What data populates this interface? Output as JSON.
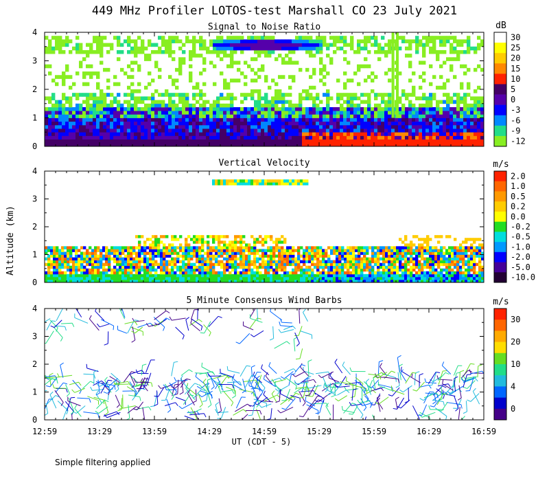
{
  "title": "449 MHz Profiler LOTOS-test Marshall CO 23 July 2021",
  "ylabel": "Altitude (km)",
  "xlabel": "UT  (CDT - 5)",
  "footnote": "Simple filtering applied",
  "x_ticks": [
    "12:59",
    "13:29",
    "13:59",
    "14:29",
    "14:59",
    "15:29",
    "15:59",
    "16:29",
    "16:59"
  ],
  "y_ticks": [
    "0",
    "1",
    "2",
    "3",
    "4"
  ],
  "chart_data": [
    {
      "type": "heatmap",
      "title": "Signal to Noise Ratio",
      "unit": "dB",
      "x_range": [
        "12:59",
        "16:59"
      ],
      "ylim": [
        0,
        4
      ],
      "colorbar": {
        "labels": [
          "30",
          "25",
          "20",
          "15",
          "10",
          "5",
          "0",
          "-3",
          "-6",
          "-9",
          "-12"
        ],
        "colors": [
          "#ffffff",
          "#ffff00",
          "#ffcc00",
          "#ff8800",
          "#ff2200",
          "#440066",
          "#5500aa",
          "#0000ff",
          "#0088ff",
          "#22dd88",
          "#88ee22"
        ]
      }
    },
    {
      "type": "heatmap",
      "title": "Vertical Velocity",
      "unit": "m/s",
      "x_range": [
        "12:59",
        "16:59"
      ],
      "ylim": [
        0,
        4
      ],
      "colorbar": {
        "labels": [
          "2.0",
          "1.0",
          "0.5",
          "0.2",
          "0.0",
          "-0.2",
          "-0.5",
          "-1.0",
          "-2.0",
          "-5.0",
          "-10.0"
        ],
        "colors": [
          "#ff2200",
          "#ff6600",
          "#ff9900",
          "#ffcc00",
          "#ffff00",
          "#22dd22",
          "#00dddd",
          "#0099ff",
          "#0000ff",
          "#440099",
          "#220033"
        ]
      }
    },
    {
      "type": "scatter",
      "title": "5 Minute Consensus Wind Barbs",
      "unit": "m/s",
      "x_range": [
        "12:59",
        "16:59"
      ],
      "ylim": [
        0,
        4
      ],
      "colorbar": {
        "labels": [
          "30",
          "20",
          "10",
          "4",
          "0"
        ],
        "colors": [
          "#ff2200",
          "#ff6600",
          "#ffaa00",
          "#ffdd00",
          "#66dd22",
          "#22dd88",
          "#22bbdd",
          "#0066ff",
          "#0000cc",
          "#440088"
        ]
      }
    }
  ]
}
